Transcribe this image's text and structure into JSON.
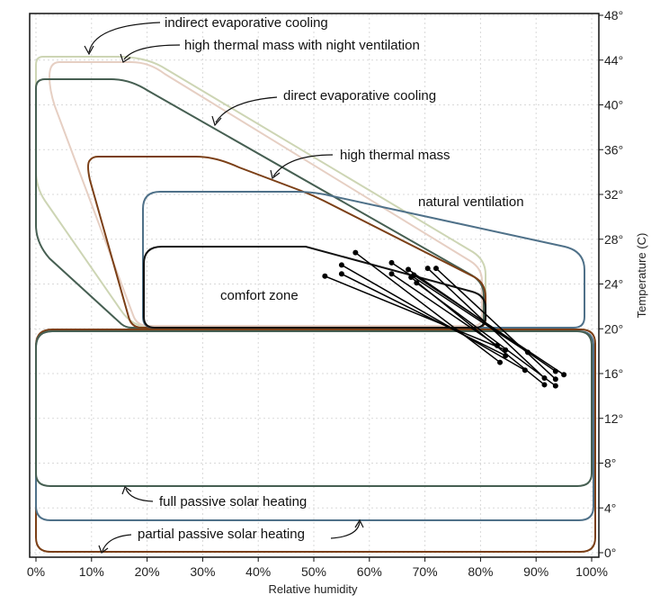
{
  "chart_data": {
    "type": "scatter",
    "title": "",
    "xlabel": "Relative humidity",
    "ylabel": "Temperature (C)",
    "xlim": [
      0,
      100
    ],
    "ylim": [
      0,
      48
    ],
    "x_ticks": [
      "0%",
      "10%",
      "20%",
      "30%",
      "40%",
      "50%",
      "60%",
      "70%",
      "80%",
      "90%",
      "100%"
    ],
    "y_ticks": [
      "0°",
      "4°",
      "8°",
      "12°",
      "16°",
      "20°",
      "24°",
      "28°",
      "32°",
      "36°",
      "40°",
      "44°",
      "48°"
    ],
    "y_axis_side": "right",
    "grid": true,
    "zones": [
      {
        "label": "indirect evaporative cooling",
        "color": "#cdd5b4"
      },
      {
        "label": "high thermal mass with night ventilation",
        "color": "#e6cfc3"
      },
      {
        "label": "direct evaporative cooling",
        "color": "#465f52"
      },
      {
        "label": "high thermal mass",
        "color": "#7b3f16"
      },
      {
        "label": "natural ventilation",
        "color": "#4f7189"
      },
      {
        "label": "comfort zone",
        "color": "#111111"
      },
      {
        "label": "full passive solar heating",
        "color": "#465f52"
      },
      {
        "label": "partial passive solar heating",
        "color": "#7b3f16"
      }
    ],
    "segments": [
      {
        "x1": 57.5,
        "y1": 26.8,
        "x2": 83.5,
        "y2": 17.0
      },
      {
        "x1": 64.0,
        "y1": 25.9,
        "x2": 88.5,
        "y2": 17.9
      },
      {
        "x1": 67.0,
        "y1": 25.3,
        "x2": 93.5,
        "y2": 16.2
      },
      {
        "x1": 68.0,
        "y1": 24.8,
        "x2": 95.0,
        "y2": 15.9
      },
      {
        "x1": 70.5,
        "y1": 25.4,
        "x2": 91.5,
        "y2": 15.6
      },
      {
        "x1": 72.0,
        "y1": 25.4,
        "x2": 93.5,
        "y2": 15.5
      },
      {
        "x1": 67.5,
        "y1": 24.6,
        "x2": 91.5,
        "y2": 15.0
      },
      {
        "x1": 68.5,
        "y1": 24.1,
        "x2": 93.5,
        "y2": 14.9
      },
      {
        "x1": 55.0,
        "y1": 25.7,
        "x2": 88.0,
        "y2": 16.3
      },
      {
        "x1": 55.0,
        "y1": 24.9,
        "x2": 84.5,
        "y2": 17.6
      },
      {
        "x1": 52.0,
        "y1": 24.7,
        "x2": 84.5,
        "y2": 18.1
      },
      {
        "x1": 64.0,
        "y1": 24.9,
        "x2": 83.0,
        "y2": 18.5
      }
    ]
  }
}
